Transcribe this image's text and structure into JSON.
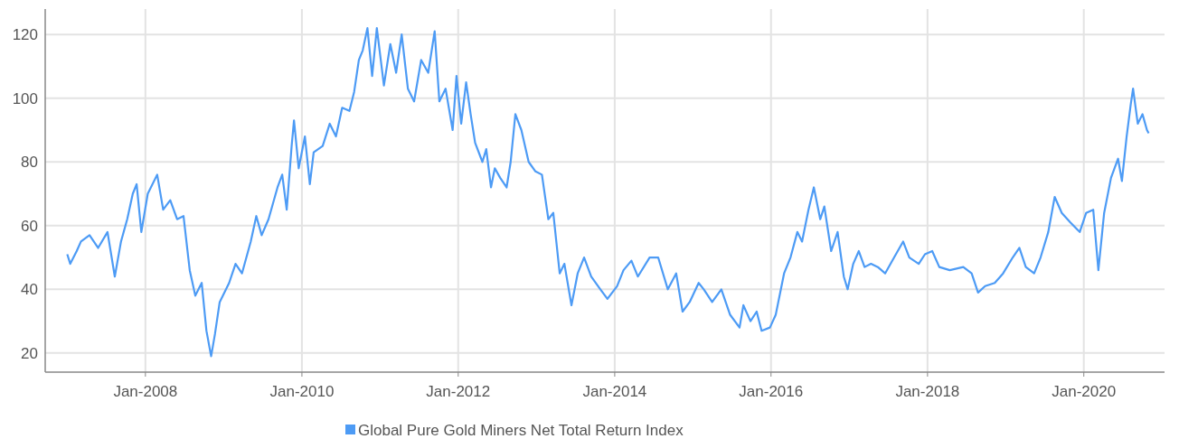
{
  "chart_data": {
    "type": "line",
    "x": [
      "2007-01-01",
      "2007-01-15",
      "2007-02-14",
      "2007-03-06",
      "2007-04-15",
      "2007-05-25",
      "2007-07-08",
      "2007-08-11",
      "2007-09-09",
      "2007-10-08",
      "2007-11-03",
      "2007-11-21",
      "2007-12-13",
      "2008-01-12",
      "2008-02-25",
      "2008-03-24",
      "2008-04-26",
      "2008-05-28",
      "2008-06-27",
      "2008-07-26",
      "2008-08-21",
      "2008-09-20",
      "2008-10-12",
      "2008-11-03",
      "2008-11-21",
      "2008-12-13",
      "2009-01-26",
      "2009-02-25",
      "2009-03-27",
      "2009-05-07",
      "2009-06-02",
      "2009-06-27",
      "2009-07-29",
      "2009-09-09",
      "2009-10-01",
      "2009-10-22",
      "2009-11-14",
      "2009-11-25",
      "2009-12-17",
      "2010-01-15",
      "2010-02-07",
      "2010-02-25",
      "2010-04-08",
      "2010-05-11",
      "2010-06-09",
      "2010-07-08",
      "2010-08-11",
      "2010-09-02",
      "2010-09-24",
      "2010-10-12",
      "2010-11-03",
      "2010-11-25",
      "2010-12-17",
      "2011-01-19",
      "2011-02-18",
      "2011-03-17",
      "2011-04-12",
      "2011-05-11",
      "2011-06-09",
      "2011-07-12",
      "2011-08-14",
      "2011-09-13",
      "2011-10-05",
      "2011-11-03",
      "2011-12-06",
      "2011-12-24",
      "2012-01-15",
      "2012-02-07",
      "2012-02-28",
      "2012-03-20",
      "2012-04-23",
      "2012-05-11",
      "2012-06-02",
      "2012-06-20",
      "2012-07-15",
      "2012-08-14",
      "2012-09-02",
      "2012-09-24",
      "2012-10-22",
      "2012-11-25",
      "2012-12-27",
      "2013-01-26",
      "2013-02-25",
      "2013-03-20",
      "2013-04-19",
      "2013-05-11",
      "2013-06-13",
      "2013-07-12",
      "2013-08-11",
      "2013-09-13",
      "2013-10-26",
      "2013-11-28",
      "2014-01-12",
      "2014-02-11",
      "2014-03-20",
      "2014-04-19",
      "2014-06-13",
      "2014-07-23",
      "2014-09-06",
      "2014-10-15",
      "2014-11-14",
      "2014-12-17",
      "2015-01-28",
      "2015-02-21",
      "2015-04-01",
      "2015-05-14",
      "2015-06-24",
      "2015-08-07",
      "2015-08-25",
      "2015-09-27",
      "2015-10-26",
      "2015-11-18",
      "2015-12-27",
      "2016-01-23",
      "2016-03-02",
      "2016-04-01",
      "2016-05-03",
      "2016-05-25",
      "2016-06-24",
      "2016-07-19",
      "2016-08-18",
      "2016-09-06",
      "2016-10-08",
      "2016-11-07",
      "2016-12-06",
      "2016-12-24",
      "2017-01-19",
      "2017-02-14",
      "2017-03-13",
      "2017-04-12",
      "2017-05-14",
      "2017-06-17",
      "2017-07-29",
      "2017-09-09",
      "2017-10-08",
      "2017-11-21",
      "2017-12-20",
      "2018-01-23",
      "2018-02-25",
      "2018-04-15",
      "2018-06-17",
      "2018-07-26",
      "2018-08-25",
      "2018-09-27",
      "2018-11-11",
      "2018-12-20",
      "2019-02-03",
      "2019-03-06",
      "2019-04-05",
      "2019-05-14",
      "2019-06-13",
      "2019-07-19",
      "2019-08-18",
      "2019-09-20",
      "2019-10-30",
      "2019-12-13",
      "2020-01-12",
      "2020-02-14",
      "2020-03-09",
      "2020-04-05",
      "2020-05-07",
      "2020-06-09",
      "2020-06-27",
      "2020-07-19",
      "2020-08-07",
      "2020-08-18",
      "2020-09-09",
      "2020-10-01",
      "2020-10-22",
      "2020-10-30"
    ],
    "series": [
      {
        "name": "Global Pure Gold Miners Net Total Return Index",
        "color": "#4d9bf5",
        "values": [
          51,
          48,
          52,
          55,
          57,
          53,
          58,
          44,
          55,
          62,
          70,
          73,
          58,
          70,
          76,
          65,
          68,
          62,
          63,
          46,
          38,
          42,
          27,
          19,
          26,
          36,
          42,
          48,
          45,
          55,
          63,
          57,
          62,
          72,
          76,
          65,
          85,
          93,
          78,
          88,
          73,
          83,
          85,
          92,
          88,
          97,
          96,
          102,
          112,
          115,
          122,
          107,
          122,
          104,
          117,
          108,
          120,
          103,
          99,
          112,
          108,
          121,
          99,
          103,
          90,
          107,
          92,
          105,
          95,
          86,
          80,
          84,
          72,
          78,
          75,
          72,
          80,
          95,
          90,
          80,
          77,
          76,
          62,
          64,
          45,
          48,
          35,
          45,
          50,
          44,
          40,
          37,
          41,
          46,
          49,
          44,
          50,
          50,
          40,
          45,
          33,
          36,
          42,
          40,
          36,
          40,
          32,
          28,
          35,
          30,
          33,
          27,
          28,
          32,
          45,
          50,
          58,
          55,
          65,
          72,
          62,
          66,
          52,
          58,
          44,
          40,
          48,
          52,
          47,
          48,
          47,
          45,
          50,
          55,
          50,
          48,
          51,
          52,
          47,
          46,
          47,
          45,
          39,
          41,
          42,
          45,
          50,
          53,
          47,
          45,
          50,
          58,
          69,
          64,
          61,
          58,
          64,
          65,
          46,
          64,
          75,
          81,
          74,
          88,
          98,
          103,
          92,
          95,
          90,
          89
        ]
      }
    ],
    "xlim": [
      "2006-09-20",
      "2021-01-12"
    ],
    "xticks": [
      {
        "value": "2008-01-01",
        "label": "Jan-2008"
      },
      {
        "value": "2010-01-01",
        "label": "Jan-2010"
      },
      {
        "value": "2012-01-01",
        "label": "Jan-2012"
      },
      {
        "value": "2014-01-01",
        "label": "Jan-2014"
      },
      {
        "value": "2016-01-01",
        "label": "Jan-2016"
      },
      {
        "value": "2018-01-01",
        "label": "Jan-2018"
      },
      {
        "value": "2020-01-01",
        "label": "Jan-2020"
      }
    ],
    "ylim": [
      14,
      128
    ],
    "yticks": [
      20,
      40,
      60,
      80,
      100,
      120
    ],
    "grid": true,
    "legend": "bottom",
    "marker": "none",
    "line_style": "solid"
  }
}
